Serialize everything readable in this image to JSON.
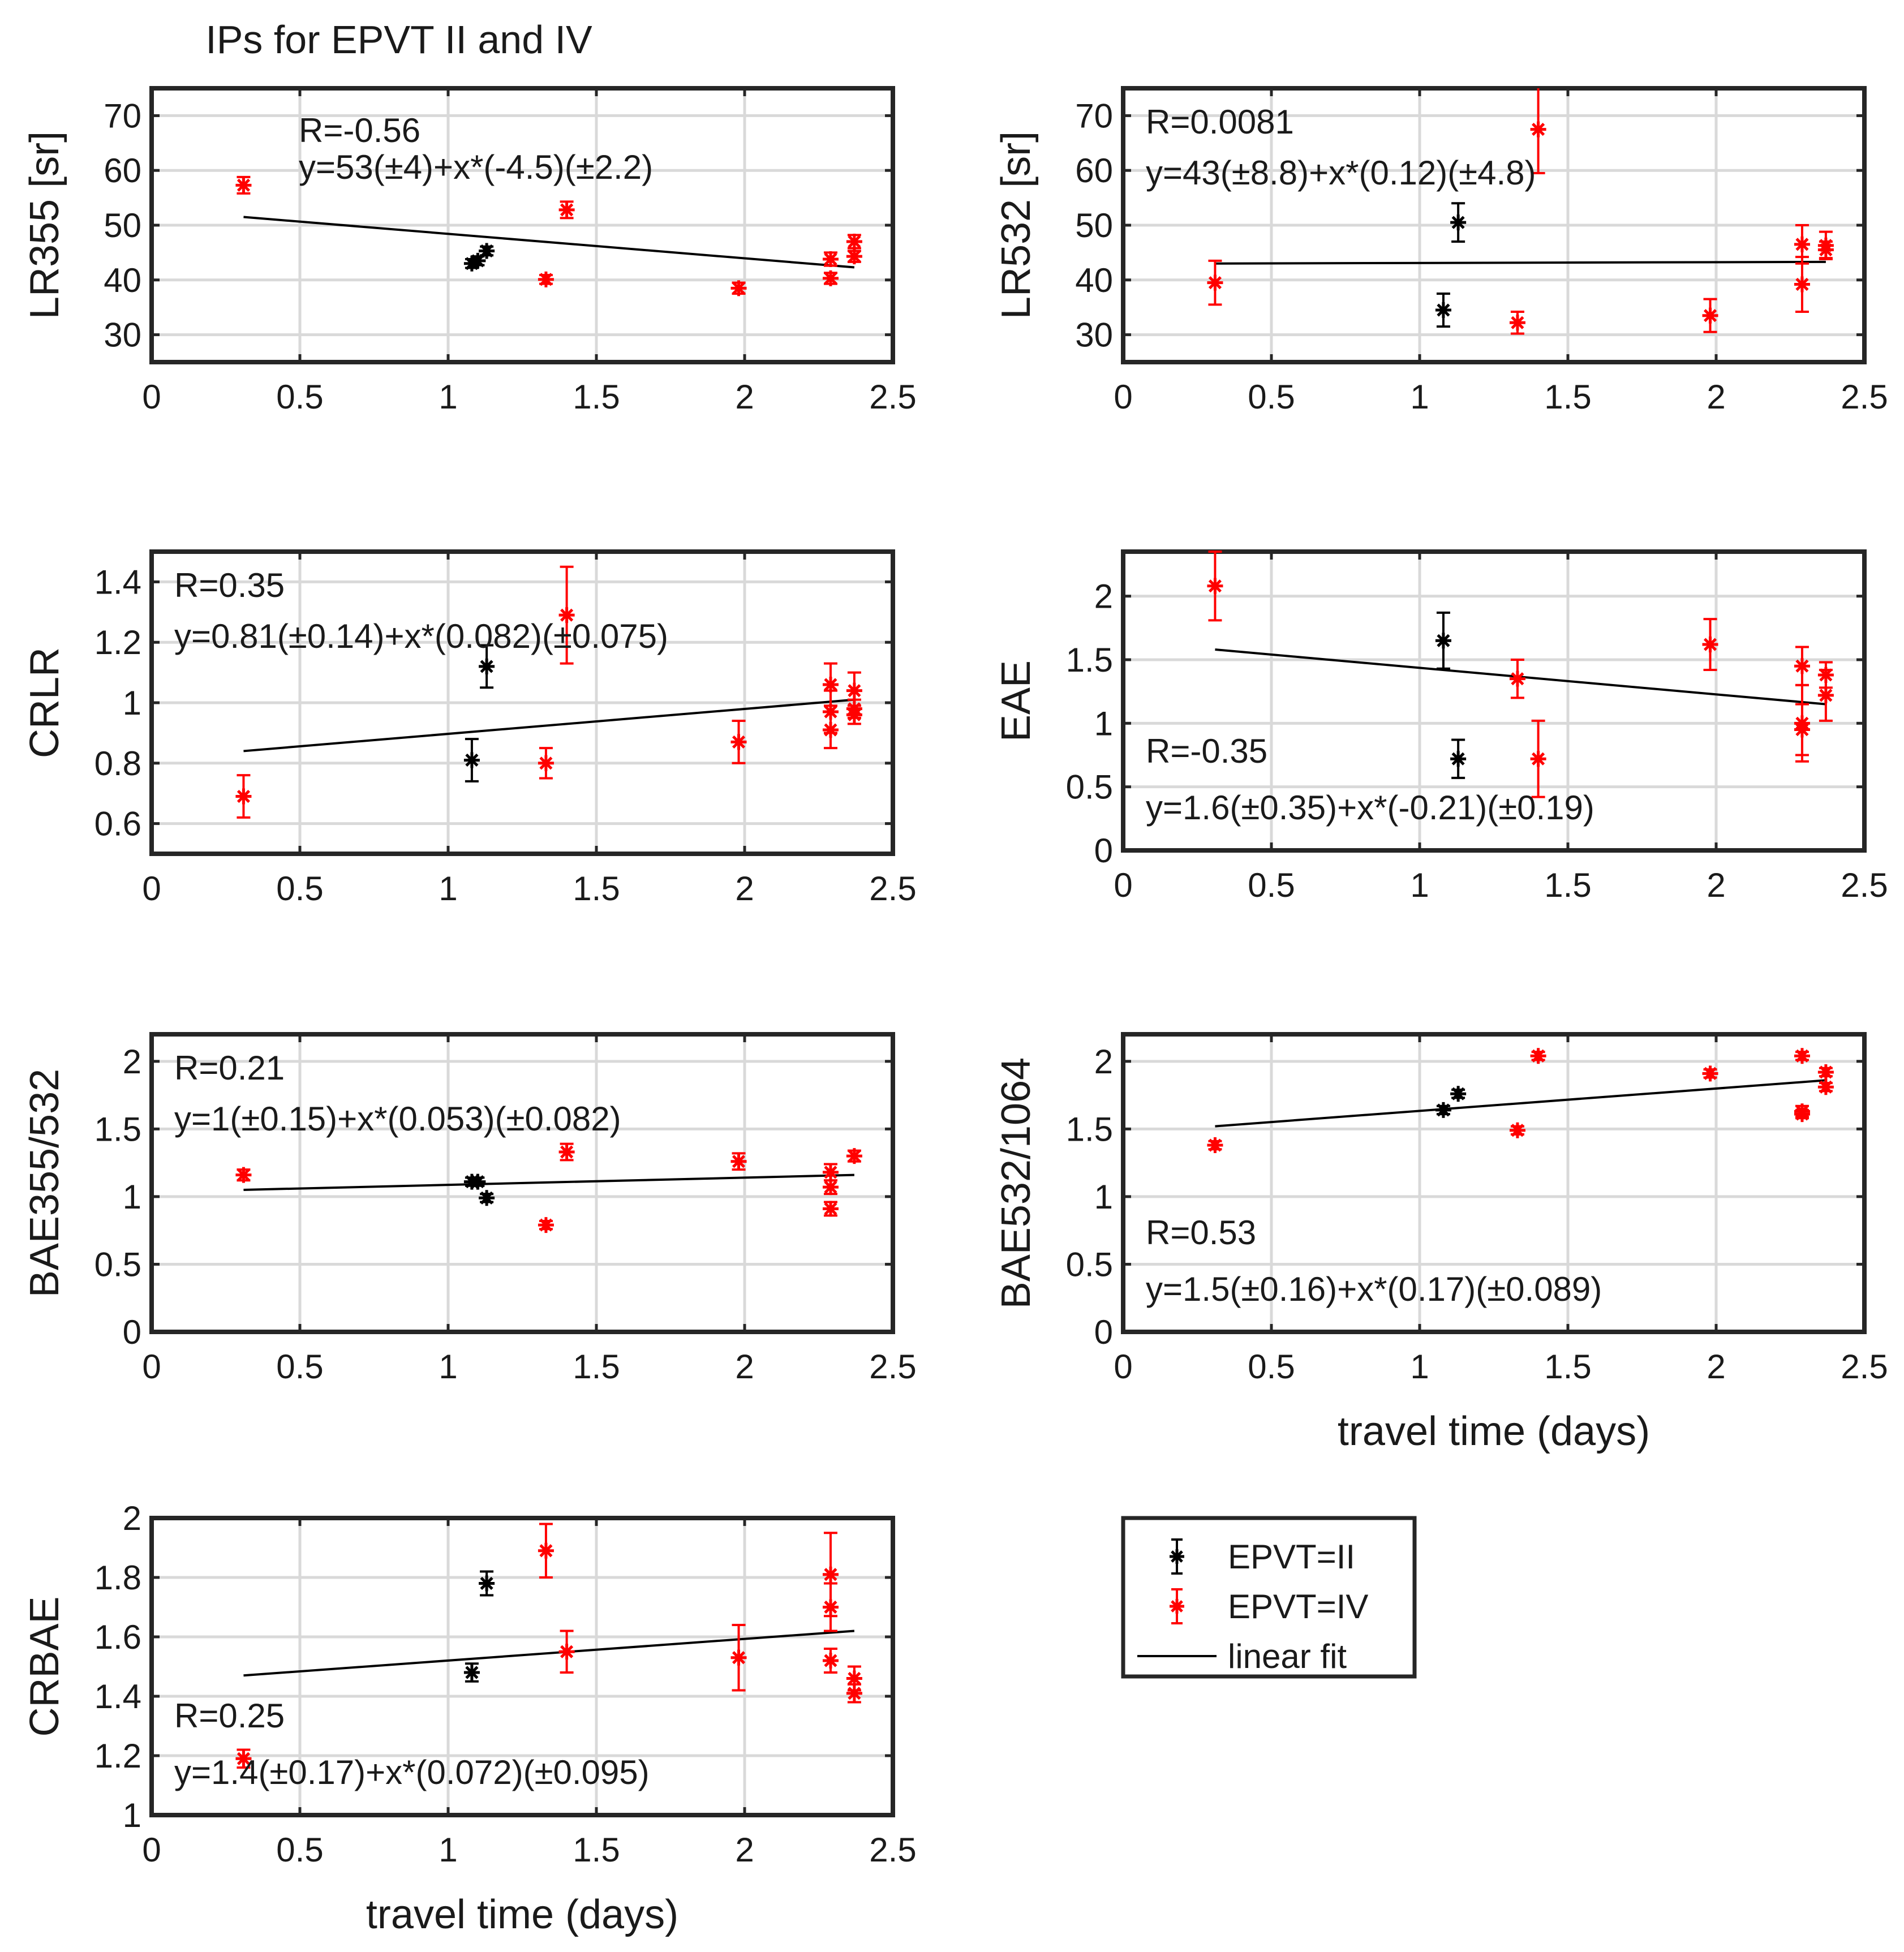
{
  "figure_title": "IPs for EPVT II and IV",
  "legend": {
    "entries": [
      {
        "label": "EPVT=II",
        "color": "#000000",
        "kind": "errorbar"
      },
      {
        "label": "EPVT=IV",
        "color": "#ff0000",
        "kind": "errorbar"
      },
      {
        "label": "linear fit",
        "color": "#000000",
        "kind": "line"
      }
    ]
  },
  "colors": {
    "epvt_ii": "#000000",
    "epvt_iv": "#ff0000",
    "fit": "#000000",
    "grid": "#d9d9d9",
    "axes": "#262626"
  },
  "chart_data": [
    {
      "id": "lr355",
      "type": "scatter",
      "ylabel": "LR355 [sr]",
      "xlabel": "",
      "xlim": [
        0,
        2.5
      ],
      "ylim": [
        25,
        75
      ],
      "xticks": [
        0,
        0.5,
        1,
        1.5,
        2,
        2.5
      ],
      "xtick_labels": [
        "0",
        "0.5",
        "1",
        "1.5",
        "2",
        "2.5"
      ],
      "yticks": [
        30,
        40,
        50,
        60,
        70
      ],
      "ytick_labels": [
        "30",
        "40",
        "50",
        "60",
        "70"
      ],
      "annotation_r": "R=-0.56",
      "annotation_eq": "y=53(±4)+x*(-4.5)(±2.2)",
      "annotation_pos": "top-center",
      "fit": {
        "x": [
          0.31,
          2.37
        ],
        "y": [
          51.5,
          42.3
        ]
      },
      "series": [
        {
          "name": "EPVT=II",
          "points": [
            [
              1.08,
              43,
              0.8
            ],
            [
              1.1,
              43.5,
              0.8
            ],
            [
              1.13,
              45.3,
              0.8
            ]
          ]
        },
        {
          "name": "EPVT=IV",
          "points": [
            [
              0.31,
              57.3,
              1.5
            ],
            [
              1.33,
              40.1,
              0.8
            ],
            [
              1.4,
              52.8,
              1.5
            ],
            [
              1.98,
              38.5,
              1
            ],
            [
              2.29,
              43.8,
              1.2
            ],
            [
              2.29,
              40.3,
              1
            ],
            [
              2.37,
              47,
              1.2
            ],
            [
              2.37,
              44.3,
              1
            ]
          ]
        }
      ]
    },
    {
      "id": "lr532",
      "type": "scatter",
      "ylabel": "LR532 [sr]",
      "xlabel": "",
      "xlim": [
        0,
        2.5
      ],
      "ylim": [
        25,
        75
      ],
      "xticks": [
        0,
        0.5,
        1,
        1.5,
        2,
        2.5
      ],
      "xtick_labels": [
        "0",
        "0.5",
        "1",
        "1.5",
        "2",
        "2.5"
      ],
      "yticks": [
        30,
        40,
        50,
        60,
        70
      ],
      "ytick_labels": [
        "30",
        "40",
        "50",
        "60",
        "70"
      ],
      "annotation_r": "R=0.0081",
      "annotation_eq": "y=43(±8.8)+x*(0.12)(±4.8)",
      "annotation_pos": "top-left",
      "fit": {
        "x": [
          0.31,
          2.37
        ],
        "y": [
          43,
          43.3
        ]
      },
      "series": [
        {
          "name": "EPVT=II",
          "points": [
            [
              1.08,
              34.5,
              3
            ],
            [
              1.13,
              50.5,
              3.5
            ]
          ]
        },
        {
          "name": "EPVT=IV",
          "points": [
            [
              0.31,
              39.5,
              4
            ],
            [
              1.33,
              32.2,
              2
            ],
            [
              1.4,
              67.5,
              8
            ],
            [
              1.98,
              33.5,
              3
            ],
            [
              2.29,
              46.5,
              3.5
            ],
            [
              2.29,
              39.2,
              5
            ],
            [
              2.37,
              46.3,
              2.5
            ],
            [
              2.37,
              45.5,
              1.5
            ]
          ]
        }
      ]
    },
    {
      "id": "crlr",
      "type": "scatter",
      "ylabel": "CRLR",
      "xlabel": "",
      "xlim": [
        0,
        2.5
      ],
      "ylim": [
        0.5,
        1.5
      ],
      "xticks": [
        0,
        0.5,
        1,
        1.5,
        2,
        2.5
      ],
      "xtick_labels": [
        "0",
        "0.5",
        "1",
        "1.5",
        "2",
        "2.5"
      ],
      "yticks": [
        0.6,
        0.8,
        1,
        1.2,
        1.4
      ],
      "ytick_labels": [
        "0.6",
        "0.8",
        "1",
        "1.2",
        "1.4"
      ],
      "annotation_r": "R=0.35",
      "annotation_eq": "y=0.81(±0.14)+x*(0.082)(±0.075)",
      "annotation_pos": "top-left",
      "fit": {
        "x": [
          0.31,
          2.37
        ],
        "y": [
          0.84,
          1.01
        ]
      },
      "series": [
        {
          "name": "EPVT=II",
          "points": [
            [
              1.08,
              0.81,
              0.07
            ],
            [
              1.13,
              1.12,
              0.07
            ]
          ]
        },
        {
          "name": "EPVT=IV",
          "points": [
            [
              0.31,
              0.69,
              0.07
            ],
            [
              1.33,
              0.8,
              0.05
            ],
            [
              1.4,
              1.29,
              0.16
            ],
            [
              1.98,
              0.87,
              0.07
            ],
            [
              2.29,
              1.06,
              0.07
            ],
            [
              2.29,
              0.97,
              0.07
            ],
            [
              2.29,
              0.91,
              0.06
            ],
            [
              2.37,
              1.04,
              0.06
            ],
            [
              2.37,
              0.98,
              0.03
            ],
            [
              2.37,
              0.96,
              0.03
            ]
          ]
        }
      ]
    },
    {
      "id": "eae",
      "type": "scatter",
      "ylabel": "EAE",
      "xlabel": "",
      "xlim": [
        0,
        2.5
      ],
      "ylim": [
        0,
        2.35
      ],
      "xticks": [
        0,
        0.5,
        1,
        1.5,
        2,
        2.5
      ],
      "xtick_labels": [
        "0",
        "0.5",
        "1",
        "1.5",
        "2",
        "2.5"
      ],
      "yticks": [
        0,
        0.5,
        1,
        1.5,
        2
      ],
      "ytick_labels": [
        "0",
        "0.5",
        "1",
        "1.5",
        "2"
      ],
      "annotation_r": "R=-0.35",
      "annotation_eq": "y=1.6(±0.35)+x*(-0.21)(±0.19)",
      "annotation_pos": "bottom-left",
      "fit": {
        "x": [
          0.31,
          2.37
        ],
        "y": [
          1.58,
          1.15
        ]
      },
      "series": [
        {
          "name": "EPVT=II",
          "points": [
            [
              1.08,
              1.65,
              0.22
            ],
            [
              1.13,
              0.72,
              0.15
            ]
          ]
        },
        {
          "name": "EPVT=IV",
          "points": [
            [
              0.31,
              2.08,
              0.27
            ],
            [
              1.33,
              1.35,
              0.15
            ],
            [
              1.4,
              0.72,
              0.3
            ],
            [
              1.98,
              1.62,
              0.2
            ],
            [
              2.29,
              1.45,
              0.15
            ],
            [
              2.29,
              1.0,
              0.3
            ],
            [
              2.29,
              0.95,
              0.2
            ],
            [
              2.37,
              1.38,
              0.1
            ],
            [
              2.37,
              1.22,
              0.2
            ]
          ]
        }
      ]
    },
    {
      "id": "bae355",
      "type": "scatter",
      "ylabel": "BAE355/532",
      "xlabel": "",
      "xlim": [
        0,
        2.5
      ],
      "ylim": [
        0,
        2.2
      ],
      "xticks": [
        0,
        0.5,
        1,
        1.5,
        2,
        2.5
      ],
      "xtick_labels": [
        "0",
        "0.5",
        "1",
        "1.5",
        "2",
        "2.5"
      ],
      "yticks": [
        0,
        0.5,
        1,
        1.5,
        2
      ],
      "ytick_labels": [
        "0",
        "0.5",
        "1",
        "1.5",
        "2"
      ],
      "annotation_r": "R=0.21",
      "annotation_eq": "y=1(±0.15)+x*(0.053)(±0.082)",
      "annotation_pos": "top-left",
      "fit": {
        "x": [
          0.31,
          2.37
        ],
        "y": [
          1.05,
          1.16
        ]
      },
      "series": [
        {
          "name": "EPVT=II",
          "points": [
            [
              1.08,
              1.11,
              0.03
            ],
            [
              1.1,
              1.11,
              0.03
            ],
            [
              1.13,
              0.99,
              0.03
            ]
          ]
        },
        {
          "name": "EPVT=IV",
          "points": [
            [
              0.31,
              1.16,
              0.04
            ],
            [
              1.33,
              0.79,
              0.03
            ],
            [
              1.4,
              1.33,
              0.06
            ],
            [
              1.98,
              1.26,
              0.06
            ],
            [
              2.29,
              1.18,
              0.06
            ],
            [
              2.29,
              1.07,
              0.05
            ],
            [
              2.29,
              0.91,
              0.05
            ],
            [
              2.37,
              1.3,
              0.04
            ]
          ]
        }
      ]
    },
    {
      "id": "bae532",
      "type": "scatter",
      "ylabel": "BAE532/1064",
      "xlabel": "travel time (days)",
      "xlim": [
        0,
        2.5
      ],
      "ylim": [
        0,
        2.2
      ],
      "xticks": [
        0,
        0.5,
        1,
        1.5,
        2,
        2.5
      ],
      "xtick_labels": [
        "0",
        "0.5",
        "1",
        "1.5",
        "2",
        "2.5"
      ],
      "yticks": [
        0,
        0.5,
        1,
        1.5,
        2
      ],
      "ytick_labels": [
        "0",
        "0.5",
        "1",
        "1.5",
        "2"
      ],
      "annotation_r": "R=0.53",
      "annotation_eq": "y=1.5(±0.16)+x*(0.17)(±0.089)",
      "annotation_pos": "bottom-left",
      "fit": {
        "x": [
          0.31,
          2.37
        ],
        "y": [
          1.52,
          1.86
        ]
      },
      "series": [
        {
          "name": "EPVT=II",
          "points": [
            [
              1.08,
              1.64,
              0.03
            ],
            [
              1.13,
              1.76,
              0.03
            ]
          ]
        },
        {
          "name": "EPVT=IV",
          "points": [
            [
              0.31,
              1.38,
              0.03
            ],
            [
              1.33,
              1.49,
              0.03
            ],
            [
              1.4,
              2.04,
              0.03
            ],
            [
              1.98,
              1.91,
              0.03
            ],
            [
              2.29,
              2.04,
              0.03
            ],
            [
              2.29,
              1.63,
              0.04
            ],
            [
              2.29,
              1.61,
              0.03
            ],
            [
              2.37,
              1.92,
              0.03
            ],
            [
              2.37,
              1.81,
              0.03
            ]
          ]
        }
      ]
    },
    {
      "id": "crbae",
      "type": "scatter",
      "ylabel": "CRBAE",
      "xlabel": "travel time (days)",
      "xlim": [
        0,
        2.5
      ],
      "ylim": [
        1,
        2
      ],
      "xticks": [
        0,
        0.5,
        1,
        1.5,
        2,
        2.5
      ],
      "xtick_labels": [
        "0",
        "0.5",
        "1",
        "1.5",
        "2",
        "2.5"
      ],
      "yticks": [
        1,
        1.2,
        1.4,
        1.6,
        1.8,
        2
      ],
      "ytick_labels": [
        "1",
        "1.2",
        "1.4",
        "1.6",
        "1.8",
        "2"
      ],
      "annotation_r": "R=0.25",
      "annotation_eq": "y=1.4(±0.17)+x*(0.072)(±0.095)",
      "annotation_pos": "bottom-left",
      "fit": {
        "x": [
          0.31,
          2.37
        ],
        "y": [
          1.47,
          1.62
        ]
      },
      "series": [
        {
          "name": "EPVT=II",
          "points": [
            [
              1.08,
              1.48,
              0.03
            ],
            [
              1.13,
              1.78,
              0.04
            ]
          ]
        },
        {
          "name": "EPVT=IV",
          "points": [
            [
              0.31,
              1.19,
              0.03
            ],
            [
              1.33,
              1.89,
              0.09
            ],
            [
              1.4,
              1.55,
              0.07
            ],
            [
              1.98,
              1.53,
              0.11
            ],
            [
              2.29,
              1.81,
              0.14
            ],
            [
              2.29,
              1.7,
              0.08
            ],
            [
              2.29,
              1.52,
              0.04
            ],
            [
              2.37,
              1.46,
              0.04
            ],
            [
              2.37,
              1.41,
              0.03
            ]
          ]
        }
      ]
    }
  ]
}
